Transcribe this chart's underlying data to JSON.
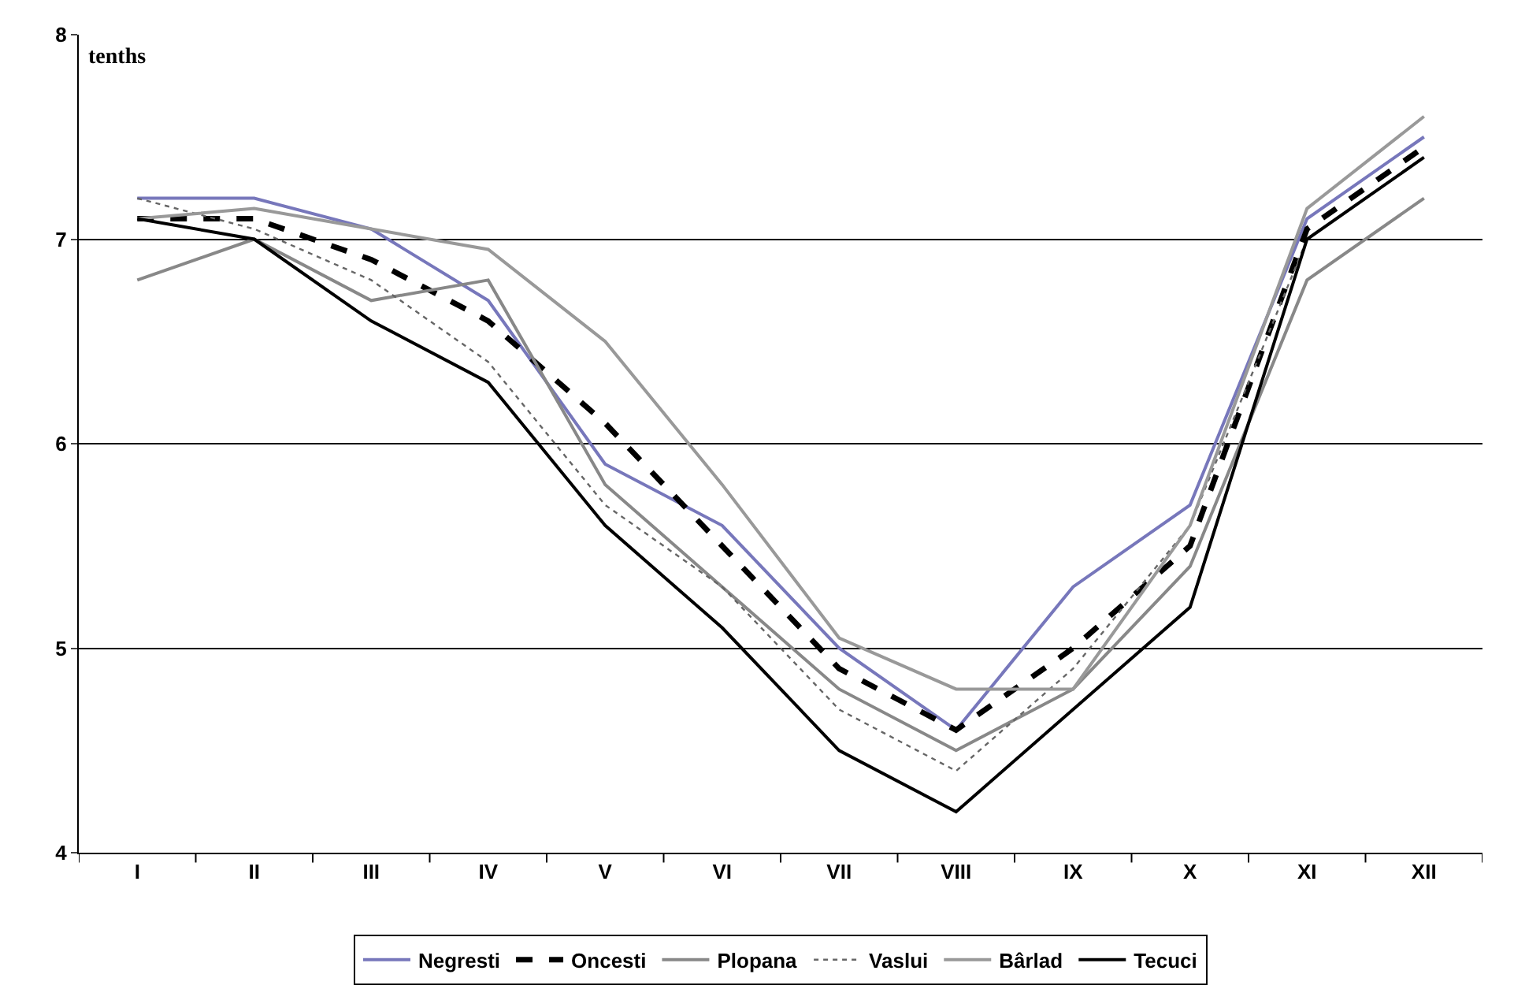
{
  "chart_data": {
    "type": "line",
    "ylabel": "tenths",
    "categories": [
      "I",
      "II",
      "III",
      "IV",
      "V",
      "VI",
      "VII",
      "VIII",
      "IX",
      "X",
      "XI",
      "XII"
    ],
    "series": [
      {
        "name": "Negresti",
        "color": "#7777bb",
        "line_style": "solid",
        "values": [
          7.2,
          7.2,
          7.05,
          6.7,
          5.9,
          5.6,
          5.0,
          4.6,
          5.3,
          5.7,
          7.1,
          7.5
        ]
      },
      {
        "name": "Oncesti",
        "color": "#000000",
        "line_style": "dashed",
        "values": [
          7.1,
          7.1,
          6.9,
          6.6,
          6.1,
          5.5,
          4.9,
          4.6,
          5.0,
          5.5,
          7.05,
          7.45
        ]
      },
      {
        "name": "Plopana",
        "color": "#888888",
        "line_style": "solid",
        "values": [
          6.8,
          7.0,
          6.7,
          6.8,
          5.8,
          5.3,
          4.8,
          4.5,
          4.8,
          5.4,
          6.8,
          7.2
        ]
      },
      {
        "name": "Vaslui",
        "color": "#666666",
        "line_style": "dotted",
        "values": [
          7.2,
          7.05,
          6.8,
          6.4,
          5.7,
          5.3,
          4.7,
          4.4,
          4.9,
          5.6,
          7.0,
          7.4
        ]
      },
      {
        "name": "Bârlad",
        "color": "#999999",
        "line_style": "solid",
        "values": [
          7.1,
          7.15,
          7.05,
          6.95,
          6.5,
          5.8,
          5.05,
          4.8,
          4.8,
          5.6,
          7.15,
          7.6
        ]
      },
      {
        "name": "Tecuci",
        "color": "#000000",
        "line_style": "solid",
        "values": [
          7.1,
          7.0,
          6.6,
          6.3,
          5.6,
          5.1,
          4.5,
          4.2,
          4.7,
          5.2,
          7.0,
          7.4
        ]
      }
    ],
    "ylim": [
      4,
      8
    ],
    "yticks": [
      4,
      5,
      6,
      7,
      8
    ],
    "grid": "y",
    "legend": "bottom",
    "marker": "none"
  }
}
